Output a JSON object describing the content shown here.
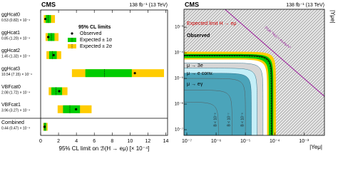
{
  "chart_data": [
    {
      "type": "range",
      "title": "CMS",
      "subtitle": "138 fb⁻¹ (13 TeV)",
      "xlabel": "95% CL limit on ℬ(H → eμ) [× 10⁻⁴]",
      "categories": [
        "ggHcat0",
        "ggHcat1",
        "ggHcat2",
        "ggHcat3",
        "VBFcat0",
        "VBFcat1",
        "Combined"
      ],
      "value_labels": [
        "0.53 (0.82) × 10⁻⁴",
        "0.85 (1.20) × 10⁻⁴",
        "1.45 (1.32) × 10⁻⁴",
        "10.54 (7.15) × 10⁻⁴",
        "2.08 (1.72) × 10⁻⁴",
        "3.96 (3.27) × 10⁻⁴",
        "0.44 (0.47) × 10⁻⁴"
      ],
      "legend_title": "95% CL limits",
      "observed": {
        "name": "Observed",
        "color": "#000000",
        "values": [
          0.53,
          0.85,
          1.45,
          10.54,
          2.08,
          3.96,
          0.44
        ]
      },
      "expected": {
        "values": [
          0.82,
          1.2,
          1.32,
          7.15,
          1.72,
          3.27,
          0.47
        ]
      },
      "one_sigma": {
        "name": "Expected ± 1σ",
        "color": "#00cc00",
        "values": [
          [
            0.55,
            1.15
          ],
          [
            0.8,
            1.55
          ],
          [
            0.95,
            1.8
          ],
          [
            5.0,
            10.2
          ],
          [
            1.2,
            2.4
          ],
          [
            2.5,
            4.4
          ],
          [
            0.36,
            0.64
          ]
        ]
      },
      "two_sigma": {
        "name": "Expected ± 2σ",
        "color": "#ffcc00",
        "values": [
          [
            0.35,
            1.6
          ],
          [
            0.55,
            2.0
          ],
          [
            0.65,
            2.3
          ],
          [
            3.5,
            13.8
          ],
          [
            0.9,
            3.0
          ],
          [
            1.9,
            5.7
          ],
          [
            0.28,
            0.78
          ]
        ]
      },
      "xlim": [
        0,
        14.2
      ],
      "xticks": [
        0,
        2,
        4,
        6,
        8,
        10,
        12,
        14
      ]
    },
    {
      "type": "contour",
      "title": "CMS",
      "subtitle": "138 fb⁻¹ (13 TeV)",
      "xlabel": "|Yeμ|",
      "ylabel": "|Yμe|",
      "log": true,
      "xlim": [
        8e-08,
        0.005
      ],
      "ylim": [
        6e-08,
        0.005
      ],
      "xticks": [
        {
          "value": 1e-07,
          "label": "10⁻⁷"
        },
        {
          "value": 1e-06,
          "label": "10⁻⁶"
        },
        {
          "value": 1e-05,
          "label": "10⁻⁵"
        },
        {
          "value": 0.0001,
          "label": "10⁻⁴"
        },
        {
          "value": 0.001,
          "label": "10⁻³"
        }
      ],
      "yticks": [
        {
          "value": 1e-07,
          "label": "10⁻⁷"
        },
        {
          "value": 1e-06,
          "label": "10⁻⁶"
        },
        {
          "value": 1e-05,
          "label": "10⁻⁵"
        },
        {
          "value": 0.0001,
          "label": "10⁻⁴"
        },
        {
          "value": 0.001,
          "label": "10⁻³"
        }
      ],
      "limit": {
        "expected": {
          "name": "Expected limit H → eμ",
          "color": "#cc0000",
          "value": 7.5e-05
        },
        "observed": {
          "name": "Observed",
          "color": "#000000",
          "value": 8e-05
        },
        "one_sigma": {
          "color": "#00cc00",
          "values": [
            6.3e-05,
            9e-05
          ]
        },
        "two_sigma": {
          "color": "#ffcc00",
          "values": [
            5.5e-05,
            0.00011
          ]
        }
      },
      "regions": [
        {
          "name": "μ → 3e",
          "color": "#d6d6d6",
          "level": 4e-05
        },
        {
          "name": "μ → e conv.",
          "color": "#c4eef7",
          "level": 2.5e-05
        },
        {
          "name": "μ → eγ",
          "color": "#4ba4ba",
          "level": 1.6e-05
        }
      ],
      "contours": [
        {
          "label": "B < 10⁻⁶",
          "level": 1e-05
        },
        {
          "label": "B < 10⁻⁷",
          "level": 3.5e-06
        },
        {
          "label": "B < 10⁻⁸",
          "level": 1.2e-06
        }
      ],
      "naturalness": {
        "label": "|Yμe Yeμ| = mₑmμ/v²",
        "color": "#9b1e9b",
        "product": 1e-08
      }
    }
  ]
}
